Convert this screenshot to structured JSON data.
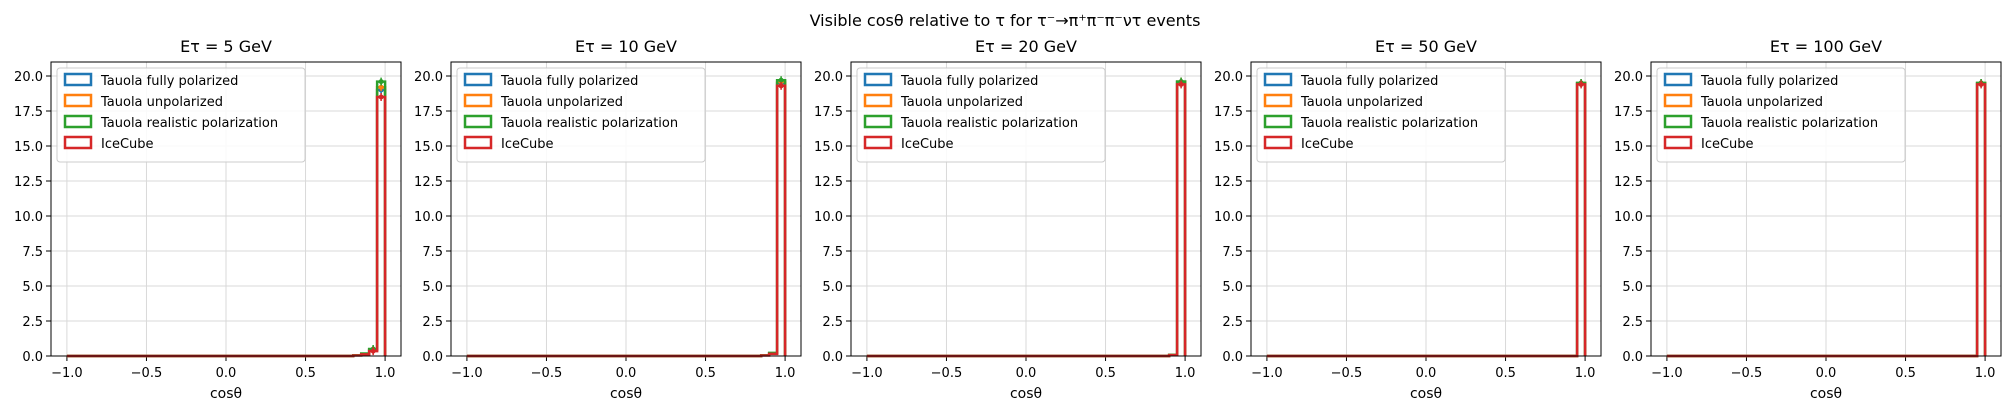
{
  "suptitle": "Visible cosθ relative to τ for τ⁻→π⁺π⁻π⁻ντ events",
  "colors": {
    "Tauola fully polarized": "#1f77b4",
    "Tauola unpolarized": "#ff7f0e",
    "Tauola realistic polarization": "#2ca02c",
    "IceCube": "#d62728"
  },
  "chart_data": [
    {
      "type": "bar",
      "title": "Eτ = 5 GeV",
      "xlabel": "cosθ",
      "ylabel": "",
      "xlim": [
        -1.1,
        1.1
      ],
      "ylim": [
        0,
        21
      ],
      "xticks": [
        "−1.0",
        "−0.5",
        "0.0",
        "0.5",
        "1.0"
      ],
      "yticks": [
        "0.0",
        "2.5",
        "5.0",
        "7.5",
        "10.0",
        "12.5",
        "15.0",
        "17.5",
        "20.0"
      ],
      "grid": true,
      "legend_position": "top-left",
      "bin_edges": [
        0.8,
        0.85,
        0.9,
        0.95,
        1.0
      ],
      "series": [
        {
          "name": "Tauola fully polarized",
          "values": [
            0.05,
            0.15,
            0.45,
            19.0
          ]
        },
        {
          "name": "Tauola unpolarized",
          "values": [
            0.05,
            0.15,
            0.45,
            19.2
          ]
        },
        {
          "name": "Tauola realistic polarization",
          "values": [
            0.05,
            0.18,
            0.5,
            19.6
          ]
        },
        {
          "name": "IceCube",
          "values": [
            0.04,
            0.12,
            0.35,
            18.5
          ]
        }
      ]
    },
    {
      "type": "bar",
      "title": "Eτ = 10 GeV",
      "xlabel": "cosθ",
      "ylabel": "",
      "xlim": [
        -1.1,
        1.1
      ],
      "ylim": [
        0,
        21
      ],
      "xticks": [
        "−1.0",
        "−0.5",
        "0.0",
        "0.5",
        "1.0"
      ],
      "yticks": [
        "0.0",
        "2.5",
        "5.0",
        "7.5",
        "10.0",
        "12.5",
        "15.0",
        "17.5",
        "20.0"
      ],
      "grid": true,
      "legend_position": "top-left",
      "bin_edges": [
        0.85,
        0.9,
        0.95,
        1.0
      ],
      "series": [
        {
          "name": "Tauola fully polarized",
          "values": [
            0.05,
            0.2,
            19.5
          ]
        },
        {
          "name": "Tauola unpolarized",
          "values": [
            0.05,
            0.2,
            19.6
          ]
        },
        {
          "name": "Tauola realistic polarization",
          "values": [
            0.05,
            0.22,
            19.7
          ]
        },
        {
          "name": "IceCube",
          "values": [
            0.04,
            0.15,
            19.3
          ]
        }
      ]
    },
    {
      "type": "bar",
      "title": "Eτ = 20 GeV",
      "xlabel": "cosθ",
      "ylabel": "",
      "xlim": [
        -1.1,
        1.1
      ],
      "ylim": [
        0,
        21
      ],
      "xticks": [
        "−1.0",
        "−0.5",
        "0.0",
        "0.5",
        "1.0"
      ],
      "yticks": [
        "0.0",
        "2.5",
        "5.0",
        "7.5",
        "10.0",
        "12.5",
        "15.0",
        "17.5",
        "20.0"
      ],
      "grid": true,
      "legend_position": "top-left",
      "bin_edges": [
        0.9,
        0.95,
        1.0
      ],
      "series": [
        {
          "name": "Tauola fully polarized",
          "values": [
            0.08,
            19.6
          ]
        },
        {
          "name": "Tauola unpolarized",
          "values": [
            0.08,
            19.6
          ]
        },
        {
          "name": "Tauola realistic polarization",
          "values": [
            0.08,
            19.6
          ]
        },
        {
          "name": "IceCube",
          "values": [
            0.06,
            19.4
          ]
        }
      ]
    },
    {
      "type": "bar",
      "title": "Eτ = 50 GeV",
      "xlabel": "cosθ",
      "ylabel": "",
      "xlim": [
        -1.1,
        1.1
      ],
      "ylim": [
        0,
        21
      ],
      "xticks": [
        "−1.0",
        "−0.5",
        "0.0",
        "0.5",
        "1.0"
      ],
      "yticks": [
        "0.0",
        "2.5",
        "5.0",
        "7.5",
        "10.0",
        "12.5",
        "15.0",
        "17.5",
        "20.0"
      ],
      "grid": true,
      "legend_position": "top-left",
      "bin_edges": [
        0.95,
        1.0
      ],
      "series": [
        {
          "name": "Tauola fully polarized",
          "values": [
            19.5
          ]
        },
        {
          "name": "Tauola unpolarized",
          "values": [
            19.5
          ]
        },
        {
          "name": "Tauola realistic polarization",
          "values": [
            19.5
          ]
        },
        {
          "name": "IceCube",
          "values": [
            19.4
          ]
        }
      ]
    },
    {
      "type": "bar",
      "title": "Eτ = 100 GeV",
      "xlabel": "cosθ",
      "ylabel": "",
      "xlim": [
        -1.1,
        1.1
      ],
      "ylim": [
        0,
        21
      ],
      "xticks": [
        "−1.0",
        "−0.5",
        "0.0",
        "0.5",
        "1.0"
      ],
      "yticks": [
        "0.0",
        "2.5",
        "5.0",
        "7.5",
        "10.0",
        "12.5",
        "15.0",
        "17.5",
        "20.0"
      ],
      "grid": true,
      "legend_position": "top-left",
      "bin_edges": [
        0.95,
        1.0
      ],
      "series": [
        {
          "name": "Tauola fully polarized",
          "values": [
            19.5
          ]
        },
        {
          "name": "Tauola unpolarized",
          "values": [
            19.5
          ]
        },
        {
          "name": "Tauola realistic polarization",
          "values": [
            19.5
          ]
        },
        {
          "name": "IceCube",
          "values": [
            19.4
          ]
        }
      ]
    }
  ]
}
